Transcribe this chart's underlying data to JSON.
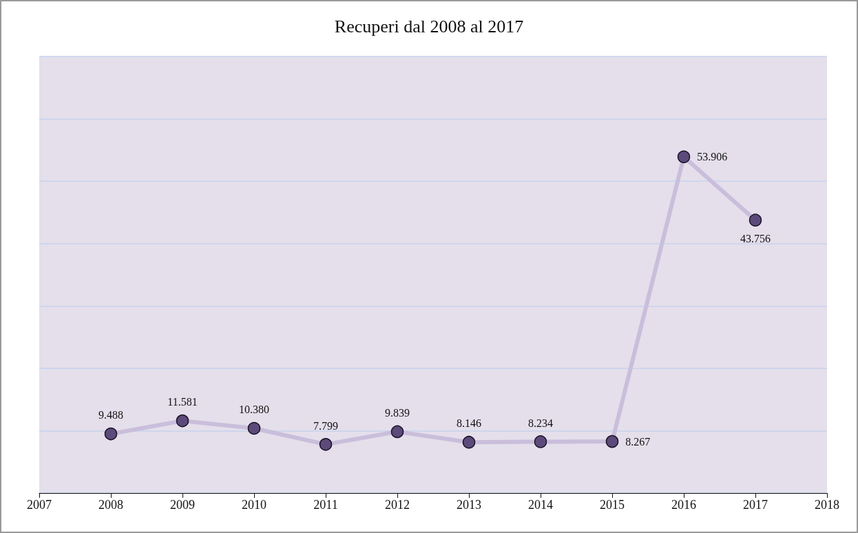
{
  "chart_data": {
    "type": "line",
    "title": "Recuperi dal 2008 al 2017",
    "x": [
      2008,
      2009,
      2010,
      2011,
      2012,
      2013,
      2014,
      2015,
      2016,
      2017
    ],
    "series": [
      {
        "color": "#c9bedb",
        "values": [
          9.488,
          11.581,
          10.38,
          7.799,
          9.839,
          8.146,
          8.234,
          8.267,
          53.906,
          43.756
        ],
        "value_labels": [
          "9.488",
          "11.581",
          "10.380",
          "7.799",
          "9.839",
          "8.146",
          "8.234",
          "8.267",
          "53.906",
          "43.756"
        ]
      }
    ],
    "xlim": [
      2007,
      2018
    ],
    "xticks": [
      2007,
      2008,
      2009,
      2010,
      2011,
      2012,
      2013,
      2014,
      2015,
      2016,
      2017,
      2018
    ],
    "ylim": [
      0,
      70
    ],
    "yticks": [
      {
        "value": 0,
        "label": null
      },
      {
        "value": 10,
        "label": null
      },
      {
        "value": 20,
        "label": null
      },
      {
        "value": 30,
        "label": null
      },
      {
        "value": 40,
        "label": null
      },
      {
        "value": 50,
        "label": null
      },
      {
        "value": 60,
        "label": null
      },
      {
        "value": 70,
        "label": null
      }
    ],
    "tick_labels": "x",
    "grid": "y",
    "marker": "circle",
    "line_style": "solid"
  }
}
